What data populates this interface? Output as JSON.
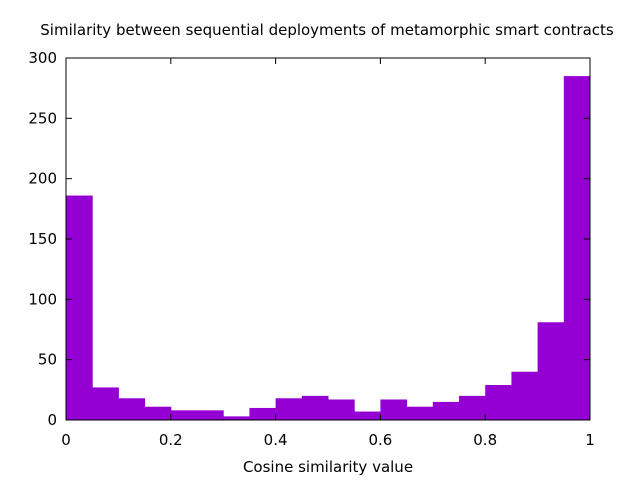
{
  "chart_data": {
    "type": "bar",
    "title": "Similarity between sequential deployments of metamorphic smart contracts",
    "xlabel": "Cosine similarity value",
    "ylabel": "",
    "xlim": [
      0,
      1
    ],
    "ylim": [
      0,
      300
    ],
    "bin_width": 0.05,
    "bin_starts": [
      0,
      0.05,
      0.1,
      0.15,
      0.2,
      0.25,
      0.3,
      0.35,
      0.4,
      0.45,
      0.5,
      0.55,
      0.6,
      0.65,
      0.7,
      0.75,
      0.8,
      0.85,
      0.9,
      0.95
    ],
    "values": [
      186,
      27,
      18,
      11,
      8,
      8,
      3,
      10,
      18,
      20,
      17,
      7,
      17,
      11,
      15,
      20,
      29,
      40,
      81,
      285
    ],
    "xticks": [
      0,
      0.2,
      0.4,
      0.6,
      0.8,
      1
    ],
    "xtick_labels": [
      "0",
      "0.2",
      "0.4",
      "0.6",
      "0.8",
      "1"
    ],
    "yticks": [
      0,
      50,
      100,
      150,
      200,
      250,
      300
    ],
    "ytick_labels": [
      "0",
      "50",
      "100",
      "150",
      "200",
      "250",
      "300"
    ],
    "bar_color": "#9400d3",
    "grid": false,
    "legend": "none"
  }
}
